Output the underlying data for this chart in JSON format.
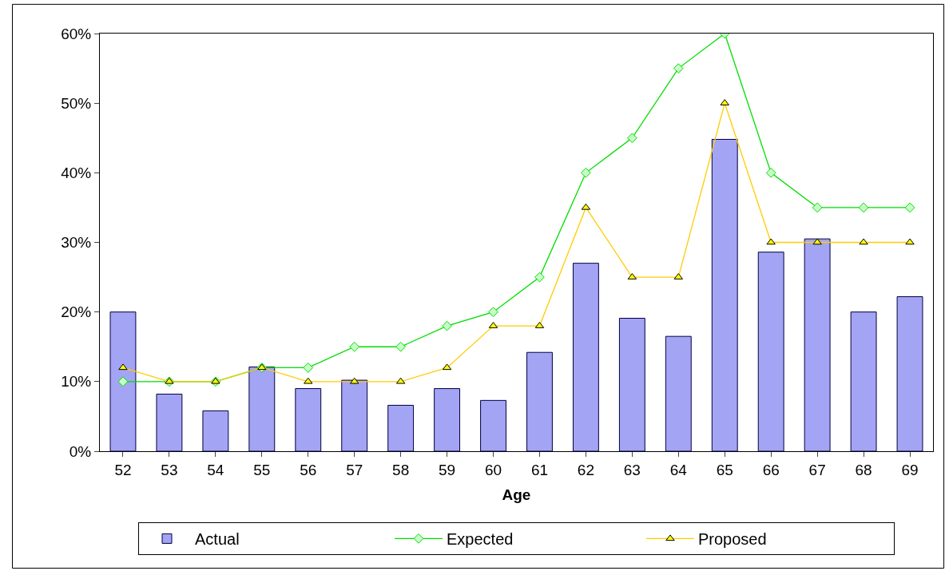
{
  "chart_data": {
    "type": "bar",
    "xlabel": "Age",
    "categories": [
      "52",
      "53",
      "54",
      "55",
      "56",
      "57",
      "58",
      "59",
      "60",
      "61",
      "62",
      "63",
      "64",
      "65",
      "66",
      "67",
      "68",
      "69"
    ],
    "series": [
      {
        "name": "Actual",
        "color": "#a4a4f4",
        "values": [
          20,
          8.2,
          5.8,
          12.1,
          9,
          10.2,
          6.6,
          9,
          7.3,
          14.2,
          27,
          19.1,
          16.5,
          44.8,
          28.6,
          30.5,
          20,
          22.2
        ]
      },
      {
        "name": "Expected",
        "type": "line",
        "color": "#00dd00",
        "marker": "diamond",
        "values": [
          10,
          10,
          10,
          12,
          12,
          15,
          15,
          18,
          20,
          25,
          40,
          45,
          55,
          60,
          40,
          35,
          35,
          35
        ]
      },
      {
        "name": "Proposed",
        "type": "line",
        "color": "#ffcc00",
        "marker": "triangle",
        "values": [
          12,
          10,
          10,
          12,
          10,
          10,
          10,
          12,
          18,
          18,
          35,
          25,
          25,
          50,
          30,
          30,
          30,
          30
        ]
      }
    ],
    "ylim": [
      0,
      60
    ],
    "yticks": [
      {
        "value": 0,
        "label": "0%"
      },
      {
        "value": 10,
        "label": "10%"
      },
      {
        "value": 20,
        "label": "20%"
      },
      {
        "value": 30,
        "label": "30%"
      },
      {
        "value": 40,
        "label": "40%"
      },
      {
        "value": 50,
        "label": "50%"
      },
      {
        "value": 60,
        "label": "60%"
      }
    ],
    "grid": false,
    "legend": "bottom"
  }
}
